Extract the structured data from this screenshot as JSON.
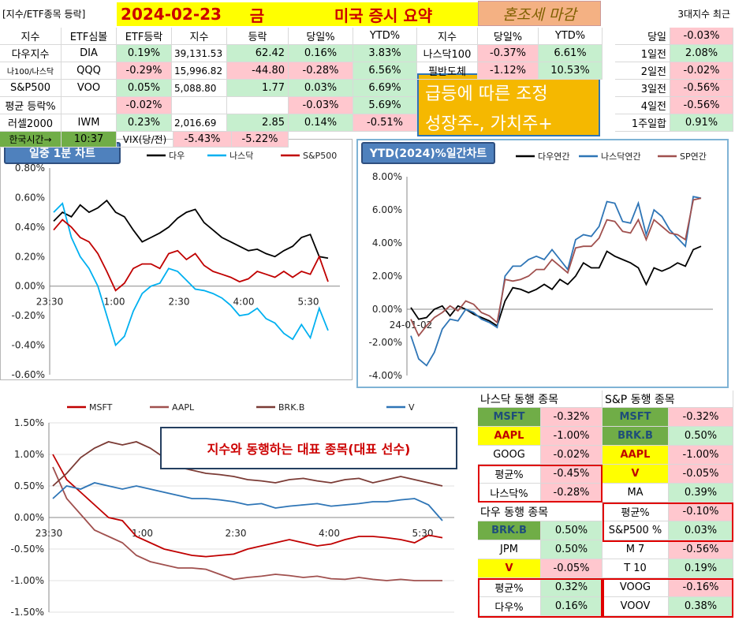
{
  "top": {
    "tag_label": "[지수/ETF종목 등락]",
    "date": "2024-02-23",
    "weekday": "금",
    "title": "미국 증시 요약",
    "status": "혼조세 마감",
    "recent_title": "3대지수 최근"
  },
  "index_table": {
    "headers": [
      "지수",
      "ETF심볼",
      "ETF등락",
      "지수",
      "등락",
      "당일%",
      "YTD%"
    ],
    "rows": [
      {
        "name": "다우지수",
        "etf": "DIA",
        "etf_chg": "0.19%",
        "value": "39,131.53",
        "chg": "62.42",
        "day": "0.16%",
        "ytd": "3.83%"
      },
      {
        "name": "나100/나스닥",
        "etf": "QQQ",
        "etf_chg": "-0.29%",
        "value": "15,996.82",
        "chg": "-44.80",
        "day": "-0.28%",
        "ytd": "6.56%"
      },
      {
        "name": "S&P500",
        "etf": "VOO",
        "etf_chg": "0.05%",
        "value": "5,088.80",
        "chg": "1.77",
        "day": "0.03%",
        "ytd": "6.69%"
      },
      {
        "name": "평균 등락%",
        "etf": "",
        "etf_chg": "-0.02%",
        "value": "",
        "chg": "",
        "day": "-0.03%",
        "ytd": "5.69%"
      },
      {
        "name": "러셀2000",
        "etf": "IWM",
        "etf_chg": "0.23%",
        "value": "2,016.69",
        "chg": "2.85",
        "day": "0.14%",
        "ytd": "-0.51%"
      }
    ],
    "kst_label": "한국시간→",
    "kst_time": "10:37",
    "vix_label": "VIX(당/전)",
    "vix_day": "-5.43%",
    "vix_prev": "-5.22%"
  },
  "sector_table": {
    "headers": [
      "지수",
      "당일%",
      "YTD%"
    ],
    "rows": [
      {
        "name": "나스닥100",
        "day": "-0.37%",
        "ytd": "6.61%"
      },
      {
        "name": "필반도체",
        "day": "-1.12%",
        "ytd": "10.53%"
      }
    ]
  },
  "comment": {
    "line1": "급등에 따른 조정",
    "line2": "성장주-, 가치주+"
  },
  "recent": {
    "rows": [
      {
        "label": "당일",
        "value": "-0.03%"
      },
      {
        "label": "1일전",
        "value": "2.08%"
      },
      {
        "label": "2일전",
        "value": "-0.02%"
      },
      {
        "label": "3일전",
        "value": "-0.56%"
      },
      {
        "label": "4일전",
        "value": "-0.56%"
      },
      {
        "label": "1주일합",
        "value": "0.91%"
      }
    ]
  },
  "peers": {
    "nasdaq_title": "나스닥 동행 종목",
    "sp_title": "S&P 동행 종목",
    "dow_title": "다우 동행 종목",
    "nasdaq": [
      {
        "s": "MSFT",
        "v": "-0.32%"
      },
      {
        "s": "AAPL",
        "v": "-1.00%"
      },
      {
        "s": "GOOG",
        "v": "-0.02%"
      },
      {
        "s": "평균%",
        "v": "-0.45%"
      },
      {
        "s": "나스닥%",
        "v": "-0.28%"
      }
    ],
    "sp": [
      {
        "s": "MSFT",
        "v": "-0.32%"
      },
      {
        "s": "BRK.B",
        "v": "0.50%"
      },
      {
        "s": "AAPL",
        "v": "-1.00%"
      },
      {
        "s": "V",
        "v": "-0.05%"
      },
      {
        "s": "MA",
        "v": "0.39%"
      },
      {
        "s": "평균%",
        "v": "-0.10%"
      },
      {
        "s": "S&P500 %",
        "v": "0.03%"
      },
      {
        "s": "M 7",
        "v": "-0.56%"
      },
      {
        "s": "T 10",
        "v": "0.19%"
      },
      {
        "s": "VOOG",
        "v": "-0.16%"
      },
      {
        "s": "VOOV",
        "v": "0.38%"
      }
    ],
    "dow": [
      {
        "s": "BRK.B",
        "v": "0.50%"
      },
      {
        "s": "JPM",
        "v": "0.50%"
      },
      {
        "s": "V",
        "v": "-0.05%"
      },
      {
        "s": "평균%",
        "v": "0.32%"
      },
      {
        "s": "다우%",
        "v": "0.16%"
      }
    ]
  },
  "chart_labels": {
    "intraday_tag": "일중 1분 차트",
    "ytd_tag": "YTD(2024)%일간차트",
    "stock_callout": "지수와 동행하는 대표 종목(대표 선수)"
  },
  "colors": {
    "dow": "#000000",
    "nasdaq": "#00b0f0",
    "sp": "#c00000",
    "ytd_nasdaq": "#2e75b6",
    "ytd_sp": "#a0504e",
    "msft": "#c00000",
    "aapl": "#a0504e",
    "brk": "#7b3b35",
    "v": "#2e75b6"
  },
  "chart_data": [
    {
      "type": "line",
      "title": "",
      "x_ticks": [
        "23:30",
        "1:00",
        "2:30",
        "4:00",
        "5:30"
      ],
      "ylim": [
        -0.6,
        0.8
      ],
      "y_ticks": [
        "0.80%",
        "0.60%",
        "0.40%",
        "0.20%",
        "0.00%",
        "-0.20%",
        "-0.40%",
        "-0.60%"
      ],
      "series": [
        {
          "name": "다우",
          "values": [
            0.44,
            0.5,
            0.47,
            0.55,
            0.5,
            0.53,
            0.58,
            0.5,
            0.47,
            0.38,
            0.3,
            0.33,
            0.36,
            0.4,
            0.46,
            0.5,
            0.52,
            0.43,
            0.38,
            0.33,
            0.3,
            0.27,
            0.24,
            0.25,
            0.22,
            0.2,
            0.24,
            0.27,
            0.33,
            0.35,
            0.2,
            0.19
          ]
        },
        {
          "name": "나스닥",
          "values": [
            0.5,
            0.56,
            0.33,
            0.2,
            0.12,
            0.0,
            -0.2,
            -0.4,
            -0.34,
            -0.17,
            -0.05,
            0.0,
            0.02,
            0.12,
            0.1,
            0.04,
            -0.02,
            -0.03,
            -0.05,
            -0.08,
            -0.13,
            -0.2,
            -0.19,
            -0.15,
            -0.22,
            -0.25,
            -0.32,
            -0.36,
            -0.26,
            -0.35,
            -0.15,
            -0.3
          ]
        },
        {
          "name": "S&P500",
          "values": [
            0.38,
            0.45,
            0.4,
            0.33,
            0.3,
            0.22,
            0.1,
            -0.03,
            0.02,
            0.12,
            0.15,
            0.15,
            0.12,
            0.22,
            0.24,
            0.18,
            0.22,
            0.14,
            0.1,
            0.08,
            0.06,
            0.03,
            0.05,
            0.1,
            0.08,
            0.06,
            0.1,
            0.06,
            0.1,
            0.08,
            0.2,
            0.03
          ]
        }
      ]
    },
    {
      "type": "line",
      "title": "",
      "x_ticks": [
        "24-01-02"
      ],
      "ylim": [
        -4,
        8
      ],
      "y_ticks": [
        "8.00%",
        "6.00%",
        "4.00%",
        "2.00%",
        "0.00%",
        "-2.00%",
        "-4.00%"
      ],
      "series": [
        {
          "name": "다우연간",
          "values": [
            0.1,
            -0.6,
            -0.5,
            0.0,
            0.2,
            -0.4,
            0.2,
            0.0,
            -0.3,
            -0.5,
            -0.7,
            -1.0,
            0.5,
            1.3,
            1.2,
            1.0,
            1.2,
            1.5,
            1.2,
            1.8,
            1.5,
            2.0,
            2.8,
            2.5,
            2.5,
            3.5,
            3.2,
            3.0,
            2.8,
            2.5,
            1.5,
            2.5,
            2.3,
            2.5,
            2.8,
            2.6,
            3.6,
            3.8
          ]
        },
        {
          "name": "나스닥연간",
          "values": [
            -1.6,
            -3.0,
            -3.4,
            -2.6,
            -1.2,
            -0.6,
            -0.7,
            0.0,
            -0.2,
            -0.6,
            -0.8,
            -1.1,
            2.0,
            2.6,
            2.6,
            3.0,
            3.2,
            3.0,
            3.6,
            3.0,
            2.4,
            4.2,
            4.5,
            4.4,
            5.0,
            6.5,
            6.4,
            5.3,
            5.2,
            6.4,
            4.5,
            6.0,
            5.6,
            4.8,
            4.3,
            3.8,
            6.8,
            6.7
          ]
        },
        {
          "name": "SP연간",
          "values": [
            -0.6,
            -1.6,
            -1.0,
            -0.5,
            -0.2,
            0.2,
            -0.1,
            0.5,
            0.3,
            -0.2,
            -0.4,
            -0.8,
            1.8,
            1.7,
            1.8,
            2.0,
            2.4,
            2.4,
            3.0,
            2.6,
            2.2,
            3.7,
            3.8,
            3.8,
            4.3,
            5.4,
            5.3,
            4.7,
            4.6,
            5.4,
            4.2,
            5.4,
            5.0,
            4.6,
            4.5,
            4.2,
            6.6,
            6.7
          ]
        }
      ]
    },
    {
      "type": "line",
      "title": "",
      "x_ticks": [
        "23:30",
        "1:00",
        "2:30",
        "4:00",
        "5:30"
      ],
      "ylim": [
        -1.5,
        1.5
      ],
      "y_ticks": [
        "1.50%",
        "1.00%",
        "0.50%",
        "0.00%",
        "-0.50%",
        "-1.00%",
        "-1.50%"
      ],
      "series": [
        {
          "name": "MSFT",
          "values": [
            1.0,
            0.6,
            0.4,
            0.2,
            0.0,
            -0.05,
            -0.3,
            -0.4,
            -0.5,
            -0.55,
            -0.6,
            -0.62,
            -0.6,
            -0.58,
            -0.5,
            -0.45,
            -0.4,
            -0.35,
            -0.4,
            -0.45,
            -0.42,
            -0.35,
            -0.3,
            -0.3,
            -0.32,
            -0.35,
            -0.4,
            -0.28,
            -0.32
          ]
        },
        {
          "name": "AAPL",
          "values": [
            0.8,
            0.3,
            0.05,
            -0.2,
            -0.3,
            -0.4,
            -0.6,
            -0.7,
            -0.75,
            -0.8,
            -0.8,
            -0.82,
            -0.9,
            -0.98,
            -0.95,
            -0.93,
            -0.9,
            -0.92,
            -0.95,
            -0.93,
            -0.97,
            -0.98,
            -0.95,
            -0.98,
            -1.0,
            -0.98,
            -1.0,
            -1.0,
            -1.0
          ]
        },
        {
          "name": "BRK.B",
          "values": [
            0.5,
            0.7,
            0.95,
            1.1,
            1.2,
            1.15,
            1.2,
            1.1,
            0.95,
            0.8,
            0.75,
            0.7,
            0.68,
            0.65,
            0.6,
            0.58,
            0.55,
            0.6,
            0.62,
            0.58,
            0.55,
            0.6,
            0.62,
            0.55,
            0.6,
            0.65,
            0.6,
            0.55,
            0.5
          ]
        },
        {
          "name": "V",
          "values": [
            0.3,
            0.5,
            0.45,
            0.55,
            0.5,
            0.45,
            0.5,
            0.45,
            0.4,
            0.35,
            0.3,
            0.3,
            0.28,
            0.25,
            0.2,
            0.22,
            0.15,
            0.18,
            0.2,
            0.22,
            0.18,
            0.2,
            0.22,
            0.25,
            0.25,
            0.28,
            0.3,
            0.2,
            -0.05
          ]
        }
      ]
    }
  ]
}
